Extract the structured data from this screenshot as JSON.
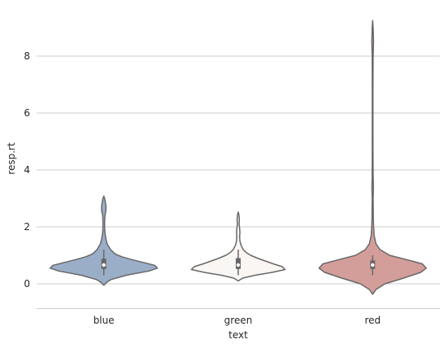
{
  "chart_data": {
    "type": "violin",
    "xlabel": "text",
    "ylabel": "resp.rt",
    "ylim": [
      -0.9,
      9.4
    ],
    "yticks": [
      0,
      2,
      4,
      6,
      8
    ],
    "grid": "horizontal",
    "categories": [
      "blue",
      "green",
      "red"
    ],
    "colors": [
      "#9aaec8",
      "#f9f6f4",
      "#d39e9a"
    ],
    "outline_color": "#676767",
    "violins": [
      {
        "category": "blue",
        "profile": [
          [
            -0.05,
            0.0
          ],
          [
            0.05,
            0.05
          ],
          [
            0.15,
            0.13
          ],
          [
            0.3,
            0.4
          ],
          [
            0.45,
            0.8
          ],
          [
            0.55,
            0.95
          ],
          [
            0.65,
            0.9
          ],
          [
            0.75,
            0.7
          ],
          [
            0.85,
            0.5
          ],
          [
            0.95,
            0.32
          ],
          [
            1.05,
            0.2
          ],
          [
            1.2,
            0.12
          ],
          [
            1.4,
            0.06
          ],
          [
            1.6,
            0.035
          ],
          [
            1.8,
            0.02
          ],
          [
            2.0,
            0.015
          ],
          [
            2.2,
            0.015
          ],
          [
            2.4,
            0.02
          ],
          [
            2.55,
            0.035
          ],
          [
            2.7,
            0.04
          ],
          [
            2.85,
            0.03
          ],
          [
            3.0,
            0.015
          ],
          [
            3.08,
            0.0
          ]
        ],
        "box": {
          "q1": 0.52,
          "q3": 0.88,
          "whisker_low": 0.3,
          "whisker_high": 1.2,
          "median": 0.66
        }
      },
      {
        "category": "green",
        "profile": [
          [
            0.1,
            0.0
          ],
          [
            0.2,
            0.08
          ],
          [
            0.3,
            0.3
          ],
          [
            0.4,
            0.6
          ],
          [
            0.5,
            0.83
          ],
          [
            0.6,
            0.78
          ],
          [
            0.7,
            0.62
          ],
          [
            0.8,
            0.48
          ],
          [
            0.9,
            0.34
          ],
          [
            1.0,
            0.22
          ],
          [
            1.1,
            0.14
          ],
          [
            1.2,
            0.09
          ],
          [
            1.35,
            0.05
          ],
          [
            1.5,
            0.03
          ],
          [
            1.65,
            0.025
          ],
          [
            1.8,
            0.03
          ],
          [
            1.95,
            0.025
          ],
          [
            2.1,
            0.015
          ],
          [
            2.25,
            0.02
          ],
          [
            2.4,
            0.015
          ],
          [
            2.52,
            0.0
          ]
        ],
        "box": {
          "q1": 0.52,
          "q3": 0.9,
          "whisker_low": 0.3,
          "whisker_high": 1.2,
          "median": 0.66
        }
      },
      {
        "category": "red",
        "profile": [
          [
            -0.37,
            0.0
          ],
          [
            -0.2,
            0.06
          ],
          [
            0.0,
            0.22
          ],
          [
            0.2,
            0.55
          ],
          [
            0.4,
            0.85
          ],
          [
            0.55,
            0.95
          ],
          [
            0.7,
            0.88
          ],
          [
            0.85,
            0.6
          ],
          [
            1.0,
            0.3
          ],
          [
            1.2,
            0.13
          ],
          [
            1.4,
            0.06
          ],
          [
            1.7,
            0.025
          ],
          [
            2.2,
            0.012
          ],
          [
            3.0,
            0.008
          ],
          [
            3.4,
            0.014
          ],
          [
            3.8,
            0.008
          ],
          [
            5.0,
            0.006
          ],
          [
            7.0,
            0.006
          ],
          [
            8.0,
            0.008
          ],
          [
            8.5,
            0.015
          ],
          [
            9.0,
            0.008
          ],
          [
            9.25,
            0.0
          ]
        ],
        "box": {
          "q1": 0.52,
          "q3": 0.82,
          "whisker_low": 0.3,
          "whisker_high": 1.0,
          "median": 0.66
        }
      }
    ]
  }
}
